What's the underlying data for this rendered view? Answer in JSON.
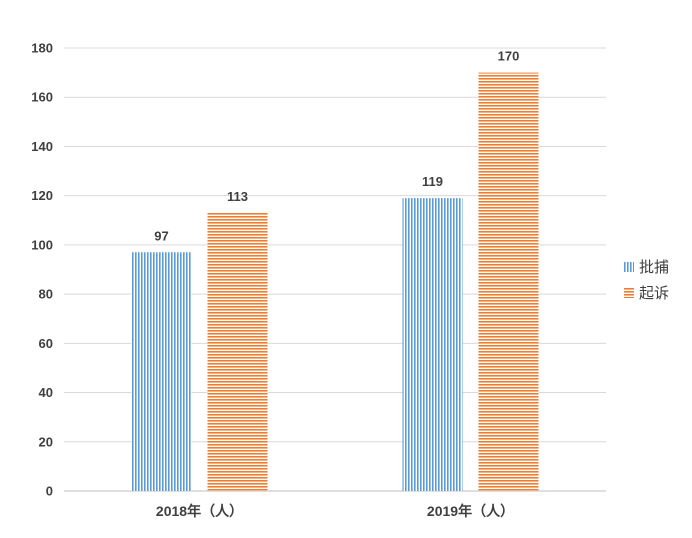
{
  "chart_data": {
    "type": "bar",
    "title": "",
    "xlabel": "",
    "ylabel": "",
    "categories": [
      "2018年（人）",
      "2019年（人）"
    ],
    "series": [
      {
        "name": "批捕",
        "values": [
          97,
          119
        ],
        "color": "#5b9bd5",
        "pattern": "vertical-stripes"
      },
      {
        "name": "起诉",
        "values": [
          113,
          170
        ],
        "color": "#ed7d31",
        "pattern": "horizontal-stripes"
      }
    ],
    "ylim": [
      0,
      180
    ],
    "yticks": [
      0,
      20,
      40,
      60,
      80,
      100,
      120,
      140,
      160,
      180
    ],
    "grid": true,
    "legend_position": "right",
    "data_labels": true
  }
}
